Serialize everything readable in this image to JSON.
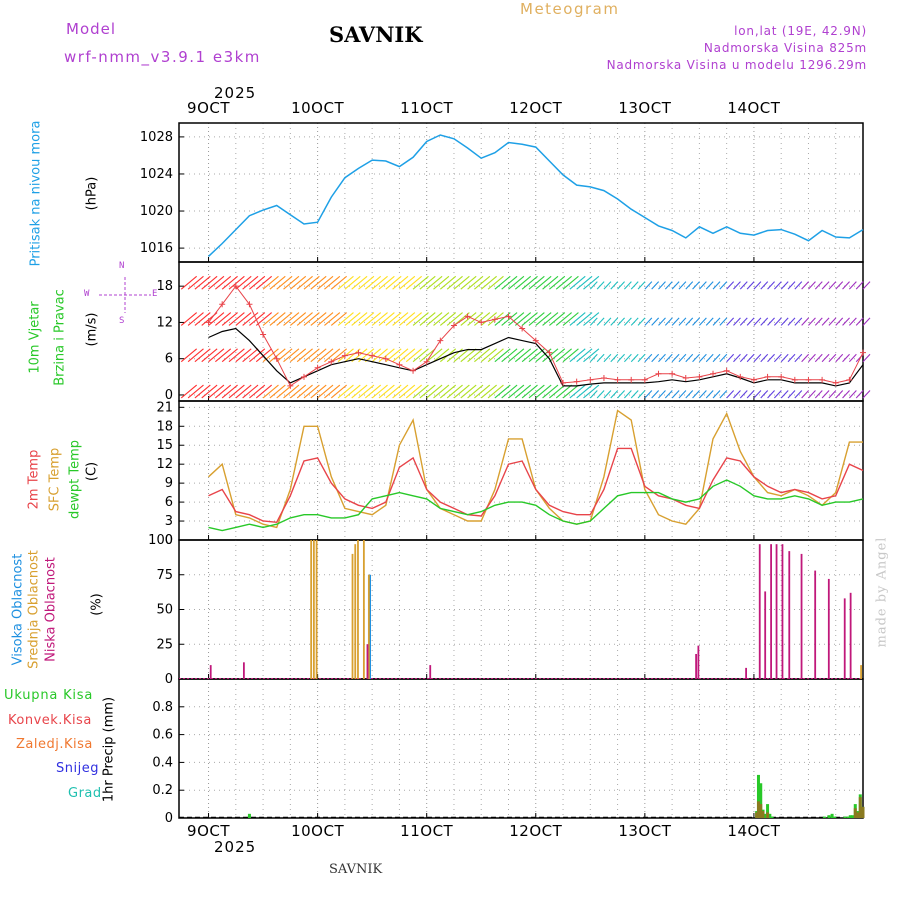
{
  "header": {
    "model_label": "Model",
    "model_name": "wrf-nmm_v3.9.1 e3km",
    "station": "SAVNIK",
    "meteogram_title": "Meteogram",
    "lonlat": "lon,lat (19E, 42.9N)",
    "altitude": "Nadmorska Visina 825m",
    "model_altitude": "Nadmorska Visina u modelu 1296.29m",
    "footer_station": "SAVNIK",
    "credit": "made by Angel"
  },
  "time_axis": {
    "year": "2025",
    "ticks": [
      "9OCT",
      "10OCT",
      "11OCT",
      "12OCT",
      "13OCT",
      "14OCT"
    ]
  },
  "colors": {
    "pressure": "#1ea0e6",
    "temp2m": "#e8444a",
    "sfc_temp": "#d8a030",
    "dewpt": "#28c828",
    "high_cloud": "#1e90e0",
    "mid_cloud": "#d8a030",
    "low_cloud": "#c0187a",
    "precip_total": "#28c828",
    "precip_conv": "#e8444a",
    "precip_frozen": "#f07830",
    "snow": "#3030e0",
    "grad": "#20c0b0",
    "header_purple": "#b040d0",
    "meteogram_gold": "#e0b060"
  },
  "panels": {
    "pressure": {
      "label": "Pritisak na nivou mora",
      "unit": "(hPa)"
    },
    "wind": {
      "label1": "10m Vjetar",
      "label2": "Brzina i Pravac",
      "unit": "(m/s)",
      "compass_n": "N",
      "compass_w": "W",
      "compass_e": "E",
      "compass_s": "S"
    },
    "temp": {
      "label1": "2m Temp",
      "label2": "SFC Temp",
      "label3": "dewpt Temp",
      "unit": "(C)"
    },
    "cloud": {
      "label1": "Visoka Oblacnost",
      "label2": "Srednja Oblacnost",
      "label3": "Niska Oblacnost",
      "unit": "(%)"
    },
    "precip": {
      "label_total": "Ukupna Kisa",
      "label_conv": "Konvek.Kisa",
      "label_frozen": "Zaledj.Kisa",
      "label_snow": "Snijeg",
      "label_grad": "Grad",
      "unit": "1hr Precip (mm)"
    }
  },
  "chart_data": [
    {
      "type": "line",
      "title": "Pritisak na nivou mora",
      "ylabel": "(hPa)",
      "ylim": [
        1014.5,
        1029.5
      ],
      "yticks": [
        1016,
        1020,
        1024,
        1028
      ],
      "x_hours": [
        0,
        3,
        6,
        9,
        12,
        15,
        18,
        21,
        24,
        27,
        30,
        33,
        36,
        39,
        42,
        45,
        48,
        51,
        54,
        57,
        60,
        63,
        66,
        69,
        72,
        75,
        78,
        81,
        84,
        87,
        90,
        93,
        96,
        99,
        102,
        105,
        108,
        111,
        114,
        117,
        120,
        123,
        126,
        129,
        132,
        135,
        138,
        141,
        144
      ],
      "series": [
        {
          "name": "mslp",
          "values": [
            1015.1,
            1016.5,
            1018.0,
            1019.5,
            1020.1,
            1020.6,
            1019.6,
            1018.6,
            1018.8,
            1021.5,
            1023.6,
            1024.6,
            1025.5,
            1025.4,
            1024.8,
            1025.8,
            1027.5,
            1028.2,
            1027.8,
            1026.8,
            1025.7,
            1026.3,
            1027.4,
            1027.2,
            1026.9,
            1025.4,
            1023.9,
            1022.8,
            1022.6,
            1022.2,
            1021.3,
            1020.2,
            1019.3,
            1018.4,
            1017.9,
            1017.1,
            1018.3,
            1017.6,
            1018.3,
            1017.6,
            1017.4,
            1017.9,
            1018.0,
            1017.5,
            1016.8,
            1017.9,
            1017.2,
            1017.1,
            1018.0
          ]
        }
      ]
    },
    {
      "type": "line",
      "title": "10m Vjetar Brzina i Pravac",
      "ylabel": "(m/s)",
      "ylim": [
        -1,
        22
      ],
      "yticks": [
        0,
        6,
        12,
        18
      ],
      "x_hours": [
        0,
        3,
        6,
        9,
        12,
        15,
        18,
        21,
        24,
        27,
        30,
        33,
        36,
        39,
        42,
        45,
        48,
        51,
        54,
        57,
        60,
        63,
        66,
        69,
        72,
        75,
        78,
        81,
        84,
        87,
        90,
        93,
        96,
        99,
        102,
        105,
        108,
        111,
        114,
        117,
        120,
        123,
        126,
        129,
        132,
        135,
        138,
        141,
        144
      ],
      "series": [
        {
          "name": "wind_speed",
          "values": [
            9.5,
            10.5,
            11.0,
            9.0,
            6.5,
            4.0,
            2.0,
            3.0,
            4.0,
            5.0,
            5.5,
            6.0,
            5.5,
            5.0,
            4.5,
            4.0,
            5.0,
            6.0,
            7.0,
            7.5,
            7.5,
            8.5,
            9.5,
            9.0,
            8.5,
            6.0,
            1.5,
            1.5,
            1.8,
            2.0,
            2.0,
            2.0,
            2.0,
            2.2,
            2.5,
            2.2,
            2.5,
            3.0,
            3.5,
            2.8,
            2.0,
            2.5,
            2.5,
            2.0,
            2.0,
            2.0,
            1.5,
            2.0,
            5.0
          ]
        },
        {
          "name": "wind_gust",
          "values": [
            12.0,
            15.0,
            18.0,
            15.0,
            10.0,
            6.0,
            1.5,
            3.0,
            4.5,
            5.5,
            6.5,
            7.0,
            6.5,
            6.0,
            5.0,
            4.0,
            5.5,
            9.0,
            11.5,
            13.0,
            12.0,
            12.5,
            13.0,
            11.0,
            9.0,
            7.0,
            2.0,
            2.2,
            2.5,
            2.8,
            2.5,
            2.5,
            2.5,
            3.5,
            3.5,
            2.8,
            3.0,
            3.5,
            4.0,
            3.0,
            2.5,
            3.0,
            3.0,
            2.5,
            2.5,
            2.5,
            2.0,
            2.5,
            7.0
          ]
        }
      ]
    },
    {
      "type": "line",
      "title": "2m Temp / SFC Temp / dewpt Temp",
      "ylabel": "(C)",
      "ylim": [
        0,
        22
      ],
      "yticks": [
        0,
        3,
        6,
        9,
        12,
        15,
        18,
        21
      ],
      "x_hours": [
        0,
        3,
        6,
        9,
        12,
        15,
        18,
        21,
        24,
        27,
        30,
        33,
        36,
        39,
        42,
        45,
        48,
        51,
        54,
        57,
        60,
        63,
        66,
        69,
        72,
        75,
        78,
        81,
        84,
        87,
        90,
        93,
        96,
        99,
        102,
        105,
        108,
        111,
        114,
        117,
        120,
        123,
        126,
        129,
        132,
        135,
        138,
        141,
        144
      ],
      "series": [
        {
          "name": "2m Temp",
          "values": [
            7.0,
            8.0,
            4.5,
            4.0,
            3.0,
            2.8,
            7.0,
            12.5,
            13.0,
            9.0,
            6.5,
            5.5,
            5.0,
            6.0,
            11.5,
            13.0,
            8.0,
            6.0,
            5.0,
            4.0,
            3.8,
            7.0,
            12.0,
            12.5,
            8.0,
            5.5,
            4.5,
            4.0,
            4.0,
            8.0,
            14.5,
            14.5,
            8.5,
            7.0,
            6.5,
            5.5,
            5.0,
            9.5,
            13.0,
            12.5,
            10.0,
            8.5,
            7.5,
            8.0,
            7.5,
            6.5,
            7.0,
            12.0,
            11.0
          ]
        },
        {
          "name": "SFC Temp",
          "values": [
            10.0,
            12.0,
            4.0,
            3.5,
            2.5,
            2.0,
            8.0,
            18.0,
            18.0,
            10.0,
            5.0,
            4.5,
            4.0,
            5.5,
            15.0,
            19.0,
            8.0,
            5.0,
            4.0,
            3.0,
            3.0,
            8.0,
            16.0,
            16.0,
            8.0,
            5.0,
            3.0,
            2.5,
            3.0,
            10.0,
            20.5,
            19.0,
            8.0,
            4.0,
            3.0,
            2.5,
            5.0,
            16.0,
            20.0,
            14.0,
            10.0,
            7.5,
            7.0,
            8.0,
            7.0,
            5.5,
            7.5,
            15.5,
            15.5
          ]
        },
        {
          "name": "dewpt Temp",
          "values": [
            2.0,
            1.5,
            2.0,
            2.5,
            2.0,
            2.5,
            3.5,
            4.0,
            4.0,
            3.5,
            3.5,
            4.0,
            6.5,
            7.0,
            7.5,
            7.0,
            6.5,
            5.0,
            4.5,
            4.0,
            4.5,
            5.5,
            6.0,
            6.0,
            5.5,
            4.0,
            3.0,
            2.5,
            3.0,
            5.0,
            7.0,
            7.5,
            7.5,
            7.5,
            6.5,
            6.0,
            6.5,
            8.5,
            9.5,
            8.5,
            7.0,
            6.5,
            6.5,
            7.0,
            6.5,
            5.5,
            6.0,
            6.0,
            6.5
          ]
        }
      ]
    },
    {
      "type": "bar",
      "title": "Visoka / Srednja / Niska Oblacnost",
      "ylabel": "(%)",
      "ylim": [
        0,
        100
      ],
      "yticks": [
        0,
        25,
        50,
        75,
        100
      ],
      "series": [
        {
          "name": "Visoka Oblacnost",
          "x_hours": [
            35.3
          ],
          "values": [
            75
          ]
        },
        {
          "name": "Srednja Oblacnost",
          "x_hours": [
            22.6,
            23.2,
            23.8,
            31.7,
            32.3,
            32.9,
            34.2,
            35.0,
            35.3,
            143.6
          ],
          "values": [
            100,
            100,
            100,
            90,
            97,
            100,
            100,
            25,
            75,
            10
          ]
        },
        {
          "name": "Niska Oblacnost",
          "x_hours": [
            0.5,
            7.8,
            35.0,
            48.8,
            107.3,
            107.8,
            118.3,
            121.3,
            122.5,
            123.8,
            125.0,
            126.3,
            127.8,
            130.5,
            133.5,
            136.5,
            140.0,
            141.3
          ],
          "values": [
            10,
            12,
            25,
            10,
            18,
            24,
            8,
            97,
            63,
            97,
            97,
            97,
            92,
            90,
            78,
            72,
            58,
            62
          ]
        }
      ]
    },
    {
      "type": "bar",
      "title": "1hr Precip",
      "ylabel": "1hr Precip (mm)",
      "ylim": [
        0,
        1.0
      ],
      "yticks": [
        0,
        0.2,
        0.4,
        0.6,
        0.8
      ],
      "series": [
        {
          "name": "Ukupna Kisa",
          "x_hours": [
            9.0,
            120.6,
            121.0,
            121.5,
            122.0,
            122.5,
            123.0,
            123.5,
            124.0,
            135.5,
            136.5,
            137.2,
            137.8,
            140.0,
            140.7,
            141.2,
            141.7,
            142.3,
            142.8,
            143.4,
            144.0
          ],
          "values": [
            0.03,
            0.05,
            0.31,
            0.25,
            0.06,
            0.03,
            0.1,
            0.03,
            0.01,
            0.01,
            0.02,
            0.03,
            0.01,
            0.01,
            0.01,
            0.02,
            0.02,
            0.1,
            0.05,
            0.17,
            0.08
          ]
        },
        {
          "name": "Konvek.Kisa",
          "x_hours": [
            120.6,
            121.0,
            121.5,
            122.0,
            123.0,
            142.3,
            142.8,
            143.4,
            144.0
          ],
          "values": [
            0.04,
            0.12,
            0.1,
            0.05,
            0.04,
            0.07,
            0.04,
            0.15,
            0.08
          ]
        }
      ]
    }
  ]
}
